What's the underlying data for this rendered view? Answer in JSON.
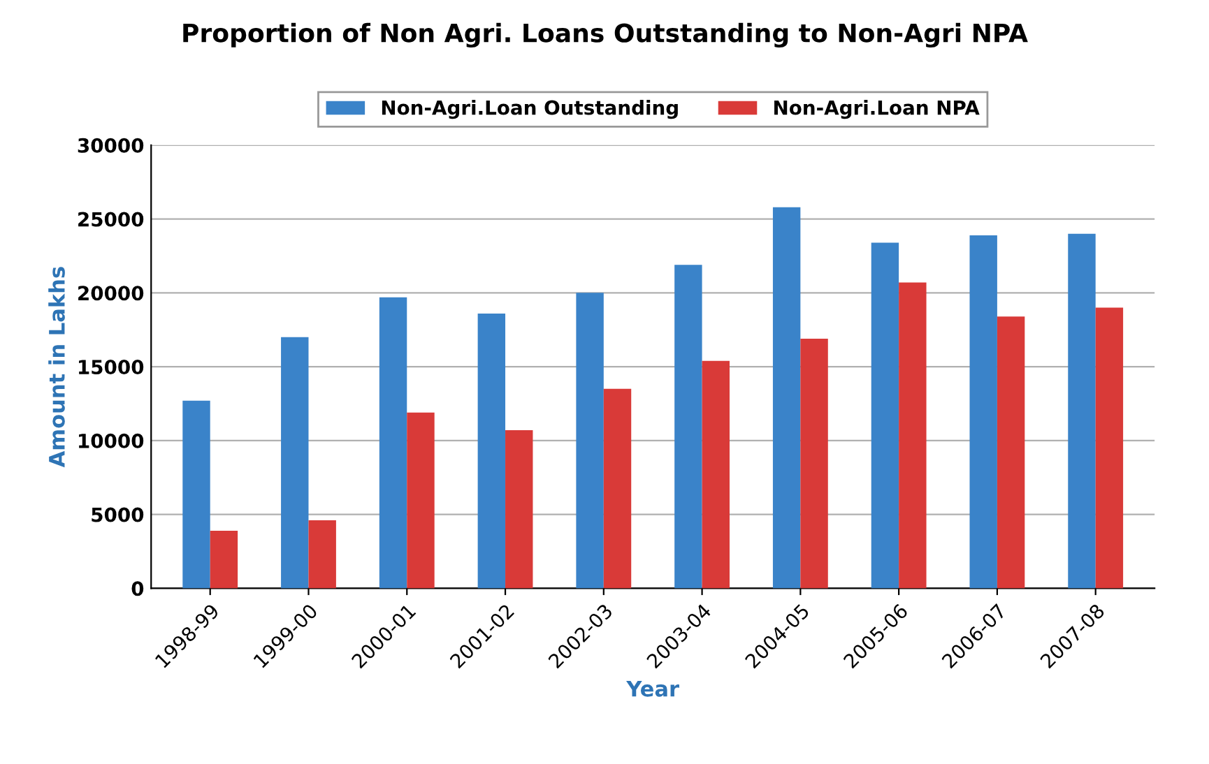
{
  "chart_data": {
    "type": "bar",
    "title": "Proportion of Non Agri. Loans Outstanding to Non-Agri NPA",
    "xlabel": "Year",
    "ylabel": "Amount in Lakhs",
    "categories": [
      "1998-99",
      "1999-00",
      "2000-01",
      "2001-02",
      "2002-03",
      "2003-04",
      "2004-05",
      "2005-06",
      "2006-07",
      "2007-08"
    ],
    "series": [
      {
        "name": "Non-Agri.Loan Outstanding",
        "color": "#3a83c9",
        "values": [
          12700,
          17000,
          19700,
          18600,
          20000,
          21900,
          25800,
          23400,
          23900,
          24000
        ]
      },
      {
        "name": "Non-Agri.Loan NPA",
        "color": "#d93a38",
        "values": [
          3900,
          4600,
          11900,
          10700,
          13500,
          15400,
          16900,
          20700,
          18400,
          19000
        ]
      }
    ],
    "ylim": [
      0,
      30000
    ],
    "yticks": [
      0,
      5000,
      10000,
      15000,
      20000,
      25000,
      30000
    ],
    "grid": "y",
    "legend": "top"
  }
}
